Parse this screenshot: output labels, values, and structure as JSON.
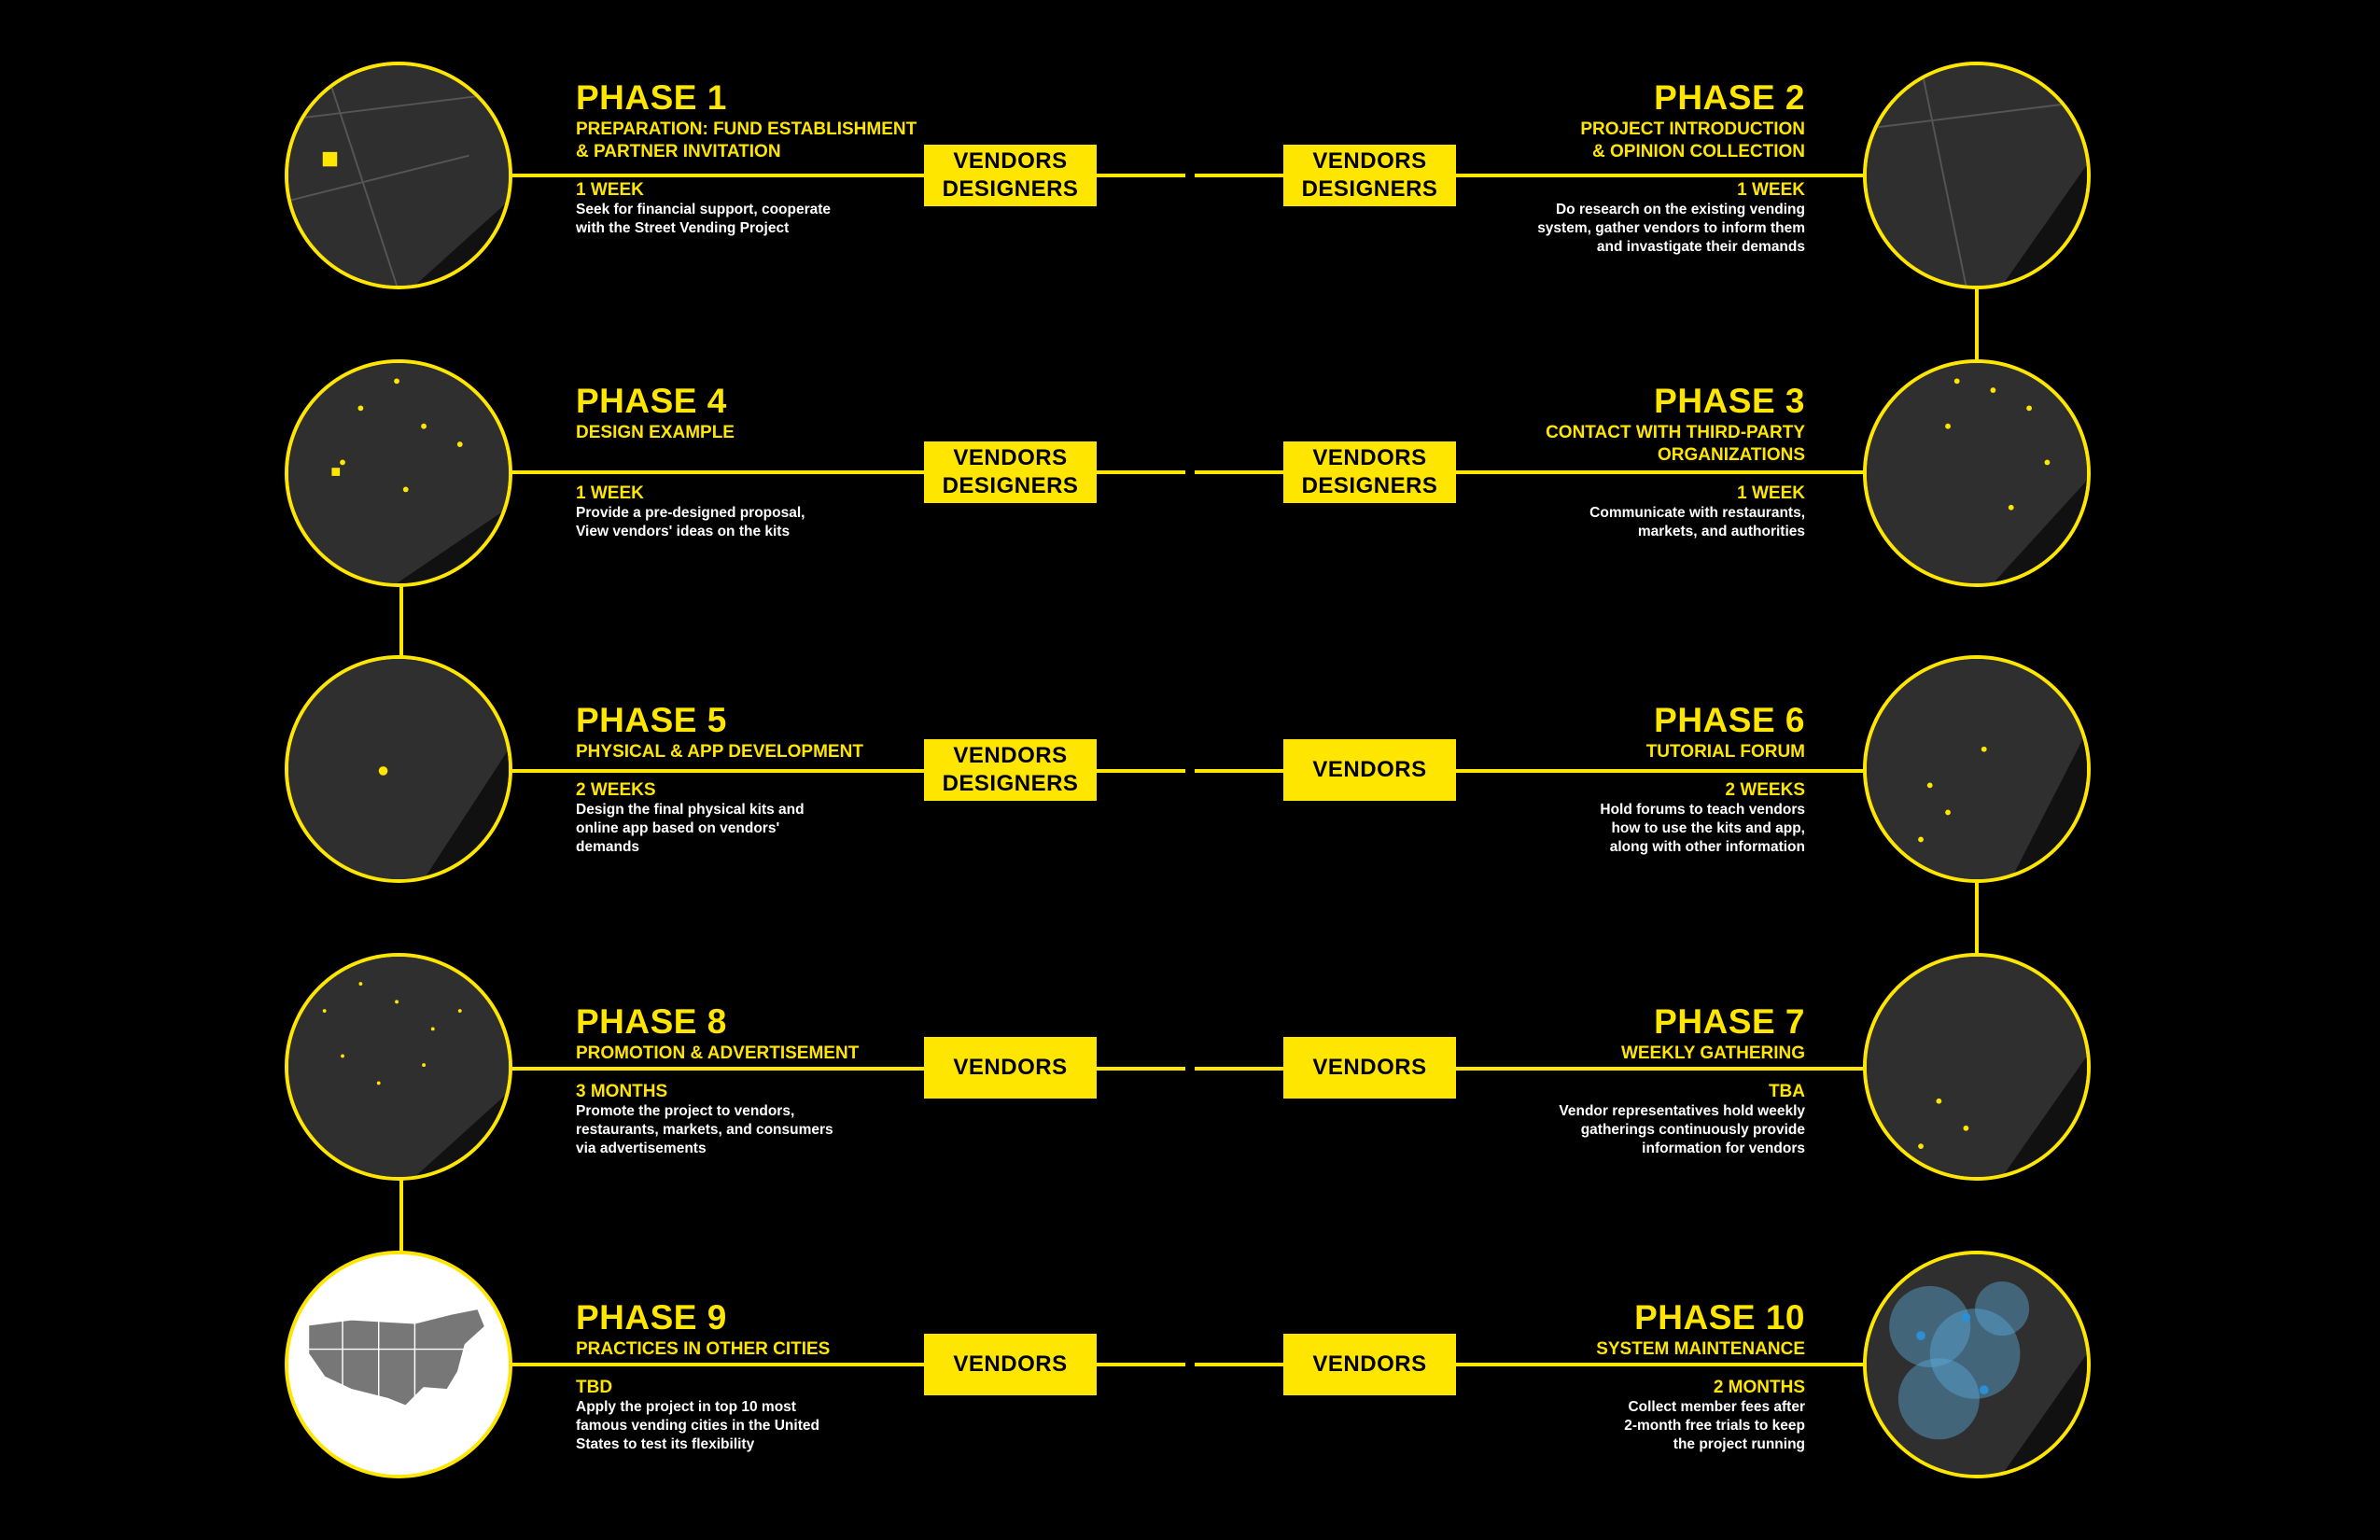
{
  "colors": {
    "accent": "#ffe600",
    "background": "#000000",
    "map": "#2b2b2b"
  },
  "phases": [
    {
      "title": "PHASE 1",
      "subtitle": [
        "PREPARATION: FUND ESTABLISHMENT",
        "& PARTNER INVITATION"
      ],
      "duration": "1 WEEK",
      "description": [
        "Seek for financial support, cooperate",
        "with the Street Vending Project"
      ],
      "roles_a": [
        "VENDORS",
        "DESIGNERS"
      ],
      "roles_b": [
        "VENDORS",
        "DESIGNERS"
      ]
    },
    {
      "title": "PHASE 2",
      "subtitle": [
        "PROJECT INTRODUCTION",
        "& OPINION COLLECTION"
      ],
      "duration": "1 WEEK",
      "description": [
        "Do research on the existing vending",
        "system, gather vendors to inform them",
        "and invastigate their demands"
      ]
    },
    {
      "title": "PHASE 3",
      "subtitle": [
        "CONTACT WITH THIRD-PARTY",
        "ORGANIZATIONS"
      ],
      "duration": "1 WEEK",
      "description": [
        "Communicate with restaurants,",
        "markets, and authorities"
      ],
      "roles_b": [
        "VENDORS",
        "DESIGNERS"
      ]
    },
    {
      "title": "PHASE 4",
      "subtitle": [
        "DESIGN EXAMPLE"
      ],
      "duration": "1 WEEK",
      "description": [
        "Provide a pre-designed proposal,",
        "View vendors' ideas on the kits"
      ],
      "roles_a": [
        "VENDORS",
        "DESIGNERS"
      ]
    },
    {
      "title": "PHASE 5",
      "subtitle": [
        "PHYSICAL & APP DEVELOPMENT"
      ],
      "duration": "2 WEEKS",
      "description": [
        "Design the final physical kits and",
        "online app based on vendors'",
        "demands"
      ],
      "roles_a": [
        "VENDORS",
        "DESIGNERS"
      ]
    },
    {
      "title": "PHASE 6",
      "subtitle": [
        "TUTORIAL FORUM"
      ],
      "duration": "2 WEEKS",
      "description": [
        "Hold forums to teach vendors",
        "how to use the kits and app,",
        "along with other information"
      ],
      "roles_b": [
        "VENDORS"
      ]
    },
    {
      "title": "PHASE 7",
      "subtitle": [
        "WEEKLY GATHERING"
      ],
      "duration": "TBA",
      "description": [
        "Vendor representatives hold weekly",
        "gatherings continuously provide",
        "information for vendors"
      ],
      "roles_b": [
        "VENDORS"
      ]
    },
    {
      "title": "PHASE 8",
      "subtitle": [
        "PROMOTION & ADVERTISEMENT"
      ],
      "duration": "3 MONTHS",
      "description": [
        "Promote the project to vendors,",
        "restaurants, markets, and consumers",
        "via advertisements"
      ],
      "roles_a": [
        "VENDORS"
      ]
    },
    {
      "title": "PHASE 9",
      "subtitle": [
        "PRACTICES IN OTHER CITIES"
      ],
      "duration": "TBD",
      "description": [
        "Apply the project in top 10 most",
        "famous vending cities in the United",
        "States to test its flexibility"
      ],
      "roles_a": [
        "VENDORS"
      ]
    },
    {
      "title": "PHASE 10",
      "subtitle": [
        "SYSTEM MAINTENANCE"
      ],
      "duration": "2 MONTHS",
      "description": [
        "Collect member fees after",
        "2-month free trials to keep",
        "the project running"
      ],
      "roles_b": [
        "VENDORS"
      ]
    }
  ]
}
